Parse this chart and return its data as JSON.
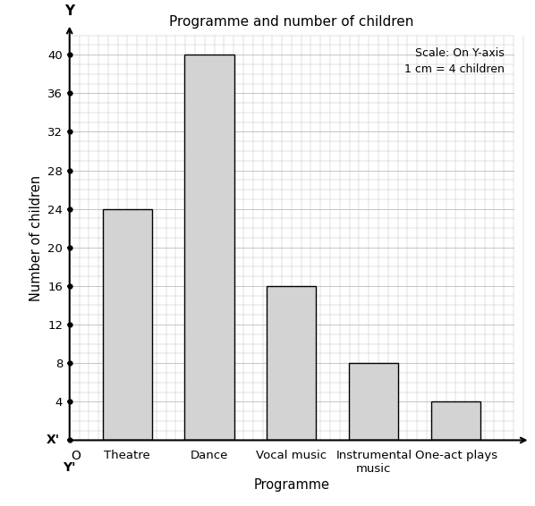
{
  "title": "Programme and number of children",
  "categories": [
    "Theatre",
    "Dance",
    "Vocal music",
    "Instrumental\nmusic",
    "One-act plays"
  ],
  "values": [
    24,
    40,
    16,
    8,
    4
  ],
  "bar_color": "#d3d3d3",
  "bar_edgecolor": "#000000",
  "xlabel": "Programme",
  "ylabel": "Number of children",
  "yticks": [
    0,
    4,
    8,
    12,
    16,
    20,
    24,
    28,
    32,
    36,
    40
  ],
  "ylim": [
    0,
    42
  ],
  "scale_text": "Scale: On Y-axis\n1 cm = 4 children",
  "background_color": "#ffffff",
  "grid_color": "#bbbbbb",
  "axis_color": "#000000"
}
